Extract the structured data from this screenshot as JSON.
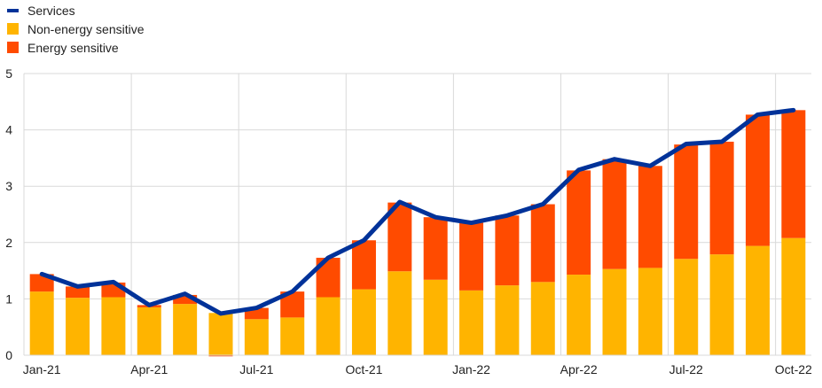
{
  "chart_data": {
    "type": "bar",
    "stacked": true,
    "categories": [
      "Jan-21",
      "Feb-21",
      "Mar-21",
      "Apr-21",
      "May-21",
      "Jun-21",
      "Jul-21",
      "Aug-21",
      "Sep-21",
      "Oct-21",
      "Nov-21",
      "Dec-21",
      "Jan-22",
      "Feb-22",
      "Mar-22",
      "Apr-22",
      "May-22",
      "Jun-22",
      "Jul-22",
      "Aug-22",
      "Sep-22",
      "Oct-22"
    ],
    "x_tick_labels": [
      "Jan-21",
      "Apr-21",
      "Jul-21",
      "Oct-21",
      "Jan-22",
      "Apr-22",
      "Jul-22",
      "Oct-22"
    ],
    "ylim": [
      0,
      5
    ],
    "y_ticks": [
      0,
      1,
      2,
      3,
      4,
      5
    ],
    "grid": true,
    "legend_position": "top-left",
    "series": [
      {
        "name": "Services",
        "kind": "line",
        "color": "#003299",
        "values": [
          1.44,
          1.22,
          1.3,
          0.89,
          1.09,
          0.74,
          0.84,
          1.13,
          1.73,
          2.04,
          2.72,
          2.45,
          2.35,
          2.48,
          2.68,
          3.29,
          3.48,
          3.36,
          3.75,
          3.79,
          4.27,
          4.35
        ]
      },
      {
        "name": "Non-energy sensitive",
        "kind": "bar",
        "color": "#FFB400",
        "values": [
          1.13,
          1.02,
          1.03,
          0.85,
          0.91,
          0.75,
          0.64,
          0.67,
          1.03,
          1.17,
          1.49,
          1.34,
          1.15,
          1.24,
          1.3,
          1.43,
          1.53,
          1.55,
          1.71,
          1.79,
          1.94,
          2.08
        ]
      },
      {
        "name": "Energy sensitive",
        "kind": "bar",
        "color": "#FF4B00",
        "values": [
          0.31,
          0.2,
          0.26,
          0.04,
          0.16,
          -0.02,
          0.2,
          0.46,
          0.7,
          0.87,
          1.22,
          1.11,
          1.2,
          1.24,
          1.38,
          1.85,
          1.95,
          1.81,
          2.03,
          2.0,
          2.33,
          2.27
        ]
      }
    ]
  }
}
